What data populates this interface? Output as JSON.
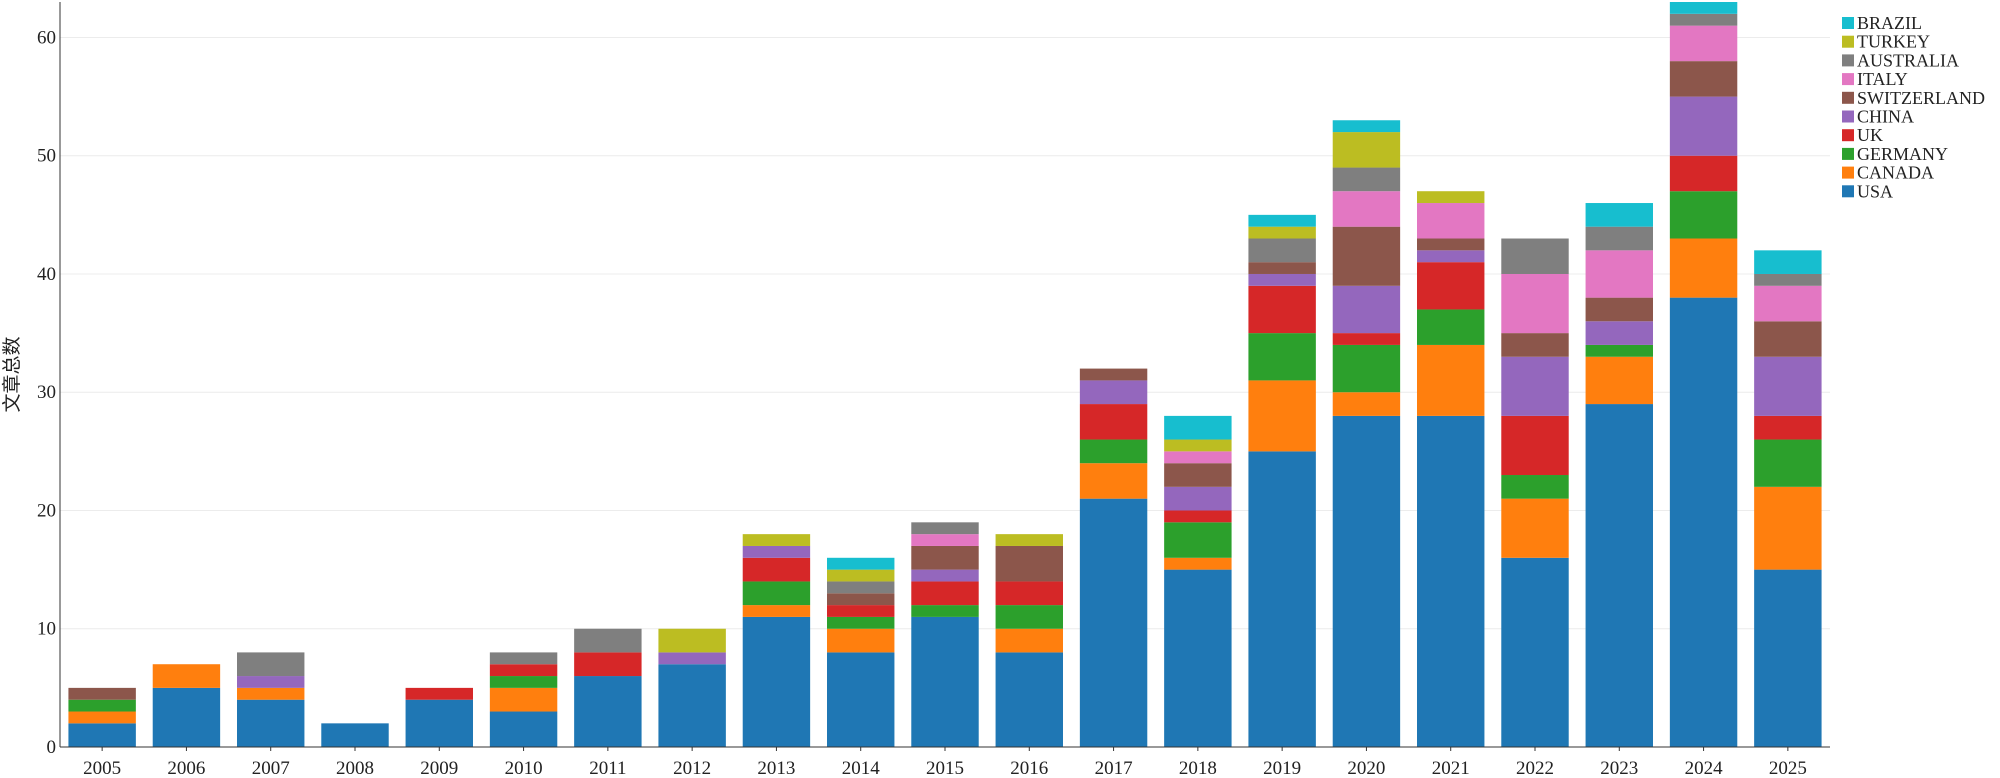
{
  "chart_data": {
    "type": "bar",
    "stacked": true,
    "title": "",
    "xlabel": "",
    "ylabel": "文章总数",
    "ylim": [
      0,
      63
    ],
    "yticks": [
      0,
      10,
      20,
      30,
      40,
      50,
      60
    ],
    "grid": true,
    "legend_position": "top-right",
    "categories": [
      "2005",
      "2006",
      "2007",
      "2008",
      "2009",
      "2010",
      "2011",
      "2012",
      "2013",
      "2014",
      "2015",
      "2016",
      "2017",
      "2018",
      "2019",
      "2020",
      "2021",
      "2022",
      "2023",
      "2024",
      "2025"
    ],
    "series": [
      {
        "name": "USA",
        "color": "#1f77b4",
        "values": [
          2,
          5,
          4,
          2,
          4,
          3,
          6,
          7,
          11,
          8,
          11,
          8,
          21,
          15,
          25,
          28,
          28,
          16,
          29,
          38,
          15
        ]
      },
      {
        "name": "CANADA",
        "color": "#ff7f0e",
        "values": [
          1,
          2,
          1,
          0,
          0,
          2,
          0,
          0,
          1,
          2,
          0,
          2,
          3,
          1,
          6,
          2,
          6,
          5,
          4,
          5,
          7
        ]
      },
      {
        "name": "GERMANY",
        "color": "#2ca02c",
        "values": [
          1,
          0,
          0,
          0,
          0,
          1,
          0,
          0,
          2,
          1,
          1,
          2,
          2,
          3,
          4,
          4,
          3,
          2,
          1,
          4,
          4
        ]
      },
      {
        "name": "UK",
        "color": "#d62728",
        "values": [
          0,
          0,
          0,
          0,
          1,
          1,
          2,
          0,
          2,
          1,
          2,
          2,
          3,
          1,
          4,
          1,
          4,
          5,
          0,
          3,
          2
        ]
      },
      {
        "name": "CHINA",
        "color": "#9467bd",
        "values": [
          0,
          0,
          1,
          0,
          0,
          0,
          0,
          1,
          1,
          0,
          1,
          0,
          2,
          2,
          1,
          4,
          1,
          5,
          2,
          5,
          5
        ]
      },
      {
        "name": "SWITZERLAND",
        "color": "#8c564b",
        "values": [
          1,
          0,
          0,
          0,
          0,
          0,
          0,
          0,
          0,
          1,
          2,
          3,
          1,
          2,
          1,
          5,
          1,
          2,
          2,
          3,
          3
        ]
      },
      {
        "name": "ITALY",
        "color": "#e377c2",
        "values": [
          0,
          0,
          0,
          0,
          0,
          0,
          0,
          0,
          0,
          0,
          1,
          0,
          0,
          1,
          0,
          3,
          3,
          5,
          4,
          3,
          3
        ]
      },
      {
        "name": "AUSTRALIA",
        "color": "#7f7f7f",
        "values": [
          0,
          0,
          2,
          0,
          0,
          1,
          2,
          0,
          0,
          1,
          1,
          0,
          0,
          0,
          2,
          2,
          0,
          3,
          2,
          1,
          1
        ]
      },
      {
        "name": "TURKEY",
        "color": "#bcbd22",
        "values": [
          0,
          0,
          0,
          0,
          0,
          0,
          0,
          2,
          1,
          1,
          0,
          1,
          0,
          1,
          1,
          3,
          1,
          0,
          0,
          0,
          0
        ]
      },
      {
        "name": "BRAZIL",
        "color": "#17becf",
        "values": [
          0,
          0,
          0,
          0,
          0,
          0,
          0,
          0,
          0,
          1,
          0,
          0,
          0,
          2,
          1,
          1,
          0,
          0,
          2,
          1,
          2
        ]
      }
    ]
  }
}
